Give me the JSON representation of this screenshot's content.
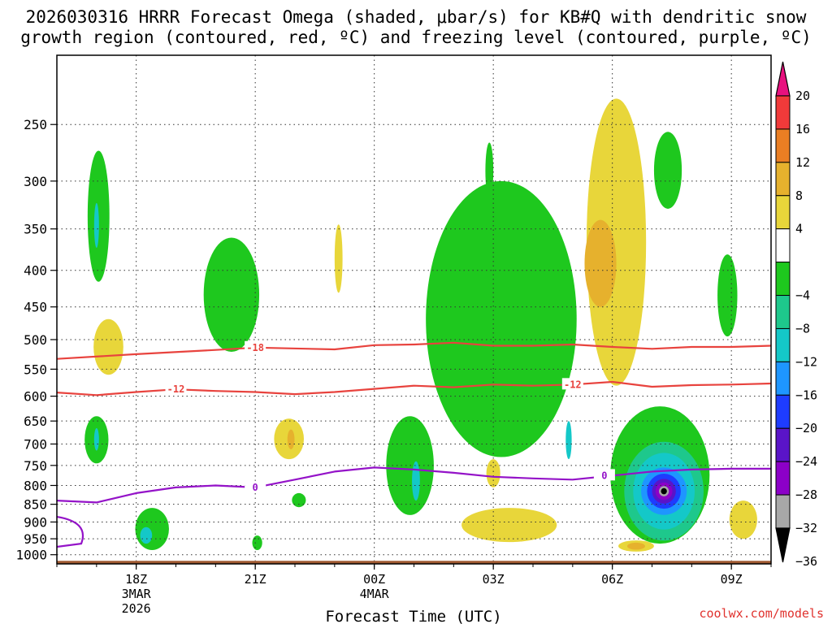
{
  "chart_data": {
    "type": "heatmap",
    "title_lines": [
      "2026030316 HRRR Forecast Omega (shaded, μbar/s) for KB#Q with dendritic snow",
      "growth region (contoured, red, ºC) and freezing level (contoured, purple, ºC)"
    ],
    "xlabel": "Forecast Time (UTC)",
    "x_ticks": [
      {
        "hour": 18,
        "lines": [
          "18Z",
          "3MAR",
          "2026"
        ]
      },
      {
        "hour": 21,
        "lines": [
          "21Z"
        ]
      },
      {
        "hour": 24,
        "lines": [
          "00Z",
          "4MAR"
        ]
      },
      {
        "hour": 27,
        "lines": [
          "03Z"
        ]
      },
      {
        "hour": 30,
        "lines": [
          "06Z"
        ]
      },
      {
        "hour": 33,
        "lines": [
          "09Z"
        ]
      }
    ],
    "x_range_hours": [
      16,
      34
    ],
    "y_axis_type": "log-pressure",
    "y_ticks_mb": [
      250,
      300,
      350,
      400,
      450,
      500,
      550,
      600,
      650,
      700,
      750,
      800,
      850,
      900,
      950,
      1000
    ],
    "y_range_mb": [
      200,
      1030
    ],
    "colorbar": {
      "labels": [
        "20",
        "16",
        "12",
        "8",
        "4",
        "−4",
        "−8",
        "−12",
        "−16",
        "−20",
        "−24",
        "−28",
        "−32",
        "−36"
      ],
      "colors": [
        "#e8117f",
        "#f13a3a",
        "#ea7e23",
        "#e6b12d",
        "#e8d63a",
        "#ffffff",
        "#1ec81e",
        "#1ec88c",
        "#14c8c8",
        "#1e96ff",
        "#1e3cff",
        "#5a14c8",
        "#8c00c8",
        "#a8a8a8",
        "#000000"
      ]
    },
    "contours": [
      {
        "name": "-18C isotherm",
        "label": "-18",
        "color": "#e8433e",
        "points": [
          [
            16,
            532
          ],
          [
            18,
            524
          ],
          [
            20,
            517
          ],
          [
            21,
            513
          ],
          [
            23,
            516
          ],
          [
            24,
            509
          ],
          [
            25,
            508
          ],
          [
            26,
            505
          ],
          [
            27,
            510
          ],
          [
            28,
            510
          ],
          [
            29,
            508
          ],
          [
            30,
            512
          ],
          [
            31,
            515
          ],
          [
            32,
            512
          ],
          [
            33,
            512
          ],
          [
            34,
            510
          ]
        ]
      },
      {
        "name": "-12C isotherm",
        "label": "-12",
        "color": "#e8433e",
        "points": [
          [
            16,
            593
          ],
          [
            17,
            598
          ],
          [
            18,
            592
          ],
          [
            19,
            587
          ],
          [
            20,
            590
          ],
          [
            21,
            592
          ],
          [
            22,
            596
          ],
          [
            23,
            592
          ],
          [
            24,
            586
          ],
          [
            25,
            580
          ],
          [
            26,
            583
          ],
          [
            27,
            578
          ],
          [
            28,
            580
          ],
          [
            29,
            578
          ],
          [
            30,
            573
          ],
          [
            31,
            582
          ],
          [
            32,
            579
          ],
          [
            33,
            578
          ],
          [
            34,
            576
          ]
        ]
      },
      {
        "name": "0C freezing level",
        "label": "0",
        "color": "#9413c8",
        "points": [
          [
            16,
            840
          ],
          [
            17,
            845
          ],
          [
            18,
            820
          ],
          [
            19,
            805
          ],
          [
            20,
            800
          ],
          [
            21,
            805
          ],
          [
            22,
            785
          ],
          [
            23,
            765
          ],
          [
            24,
            755
          ],
          [
            25,
            760
          ],
          [
            26,
            768
          ],
          [
            27,
            778
          ],
          [
            28,
            782
          ],
          [
            29,
            785
          ],
          [
            30,
            775
          ],
          [
            31,
            765
          ],
          [
            32,
            760
          ],
          [
            33,
            758
          ],
          [
            34,
            758
          ]
        ]
      }
    ],
    "shaded_regions": [
      {
        "name": "omega -4 area 17Z upper",
        "class": "-4",
        "center": [
          17.05,
          335
        ],
        "extent_hours": 0.55,
        "extent_mb": [
          272,
          415
        ]
      },
      {
        "name": "omega -12 core 17Z upper",
        "class": "-12",
        "center": [
          17.0,
          345
        ],
        "extent_hours": 0.1,
        "extent_mb": [
          322,
          372
        ]
      },
      {
        "name": "omega +4 area 17Z 500mb",
        "class": "4",
        "center": [
          17.3,
          508
        ],
        "extent_hours": 0.75,
        "extent_mb": [
          468,
          560
        ]
      },
      {
        "name": "omega -4 area 20Z 400mb",
        "class": "-4",
        "center": [
          20.4,
          420
        ],
        "extent_hours": 1.4,
        "extent_mb": [
          360,
          520
        ]
      },
      {
        "name": "omega +4 area 23Z 380mb",
        "class": "4",
        "center": [
          23.1,
          375
        ],
        "extent_hours": 0.2,
        "extent_mb": [
          345,
          430
        ]
      },
      {
        "name": "omega -4 area 03Z upper",
        "class": "-4",
        "center": [
          26.9,
          287
        ],
        "extent_hours": 0.2,
        "extent_mb": [
          265,
          318
        ]
      },
      {
        "name": "omega -4 band 01Z-05Z",
        "class": "-4",
        "center": [
          27.2,
          520
        ],
        "extent_hours": 3.8,
        "extent_mb": [
          300,
          730
        ]
      },
      {
        "name": "omega -12 core 05Z 690mb",
        "class": "-12",
        "center": [
          28.9,
          690
        ],
        "extent_hours": 0.15,
        "extent_mb": [
          650,
          735
        ]
      },
      {
        "name": "omega +4 area 06Z",
        "class": "4",
        "center": [
          30.1,
          400
        ],
        "extent_hours": 1.5,
        "extent_mb": [
          230,
          580
        ]
      },
      {
        "name": "omega +8 core 06Z 390mb",
        "class": "8",
        "center": [
          29.7,
          395
        ],
        "extent_hours": 0.8,
        "extent_mb": [
          340,
          450
        ]
      },
      {
        "name": "omega -4 area 07Z upper",
        "class": "-4",
        "center": [
          31.4,
          285
        ],
        "extent_hours": 0.7,
        "extent_mb": [
          256,
          328
        ]
      },
      {
        "name": "omega -4 area 09Z 430mb",
        "class": "-4",
        "center": [
          32.9,
          435
        ],
        "extent_hours": 0.5,
        "extent_mb": [
          380,
          495
        ]
      },
      {
        "name": "omega -4 area 17Z 690mb",
        "class": "-4",
        "center": [
          17.0,
          690
        ],
        "extent_hours": 0.6,
        "extent_mb": [
          640,
          745
        ]
      },
      {
        "name": "omega -12 core 17Z 690mb",
        "class": "-12",
        "center": [
          17.0,
          690
        ],
        "extent_hours": 0.12,
        "extent_mb": [
          665,
          715
        ]
      },
      {
        "name": "omega +4 area 22Z 690mb",
        "class": "4",
        "center": [
          21.85,
          690
        ],
        "extent_hours": 0.75,
        "extent_mb": [
          645,
          735
        ]
      },
      {
        "name": "omega +8 core 22Z 690mb",
        "class": "8",
        "center": [
          21.9,
          690
        ],
        "extent_hours": 0.18,
        "extent_mb": [
          668,
          712
        ]
      },
      {
        "name": "omega -4 area 01Z 720mb",
        "class": "-4",
        "center": [
          24.9,
          720
        ],
        "extent_hours": 1.2,
        "extent_mb": [
          640,
          880
        ]
      },
      {
        "name": "omega -12 core 01Z 770mb",
        "class": "-12",
        "center": [
          25.05,
          780
        ],
        "extent_hours": 0.2,
        "extent_mb": [
          740,
          840
        ]
      },
      {
        "name": "omega +4 area 03Z 760mb",
        "class": "4",
        "center": [
          27.0,
          768
        ],
        "extent_hours": 0.35,
        "extent_mb": [
          735,
          805
        ]
      },
      {
        "name": "omega +4 band 03Z-05Z 900mb",
        "class": "4",
        "center": [
          27.4,
          900
        ],
        "extent_hours": 2.4,
        "extent_mb": [
          860,
          960
        ]
      },
      {
        "name": "omega -4 area 22Z 840mb",
        "class": "-4",
        "center": [
          22.1,
          838
        ],
        "extent_hours": 0.35,
        "extent_mb": [
          820,
          858
        ]
      },
      {
        "name": "omega -4 area 21Z 960mb",
        "class": "-4",
        "center": [
          21.05,
          962
        ],
        "extent_hours": 0.25,
        "extent_mb": [
          940,
          985
        ]
      },
      {
        "name": "omega -4 area 18Z 920mb",
        "class": "-4",
        "center": [
          18.4,
          920
        ],
        "extent_hours": 0.85,
        "extent_mb": [
          860,
          985
        ]
      },
      {
        "name": "omega -12 core 18Z 940mb",
        "class": "-12",
        "center": [
          18.25,
          940
        ],
        "extent_hours": 0.3,
        "extent_mb": [
          915,
          965
        ]
      },
      {
        "name": "omega -4 to -36 storm core 07Z 820mb",
        "class": "-4",
        "center": [
          31.2,
          800
        ],
        "extent_hours": 2.5,
        "extent_mb": [
          620,
          965
        ]
      },
      {
        "name": "omega +4 area 07Z 970mb",
        "class": "4",
        "center": [
          30.6,
          972
        ],
        "extent_hours": 0.9,
        "extent_mb": [
          955,
          990
        ]
      },
      {
        "name": "omega +8 core 07Z 970mb",
        "class": "8",
        "center": [
          30.6,
          972
        ],
        "extent_hours": 0.45,
        "extent_mb": [
          962,
          984
        ]
      },
      {
        "name": "omega +4 area 09Z 880mb",
        "class": "4",
        "center": [
          33.3,
          880
        ],
        "extent_hours": 0.7,
        "extent_mb": [
          840,
          950
        ]
      }
    ],
    "ground_pressure_mb": 1020
  },
  "credit": "coolwx.com/models"
}
